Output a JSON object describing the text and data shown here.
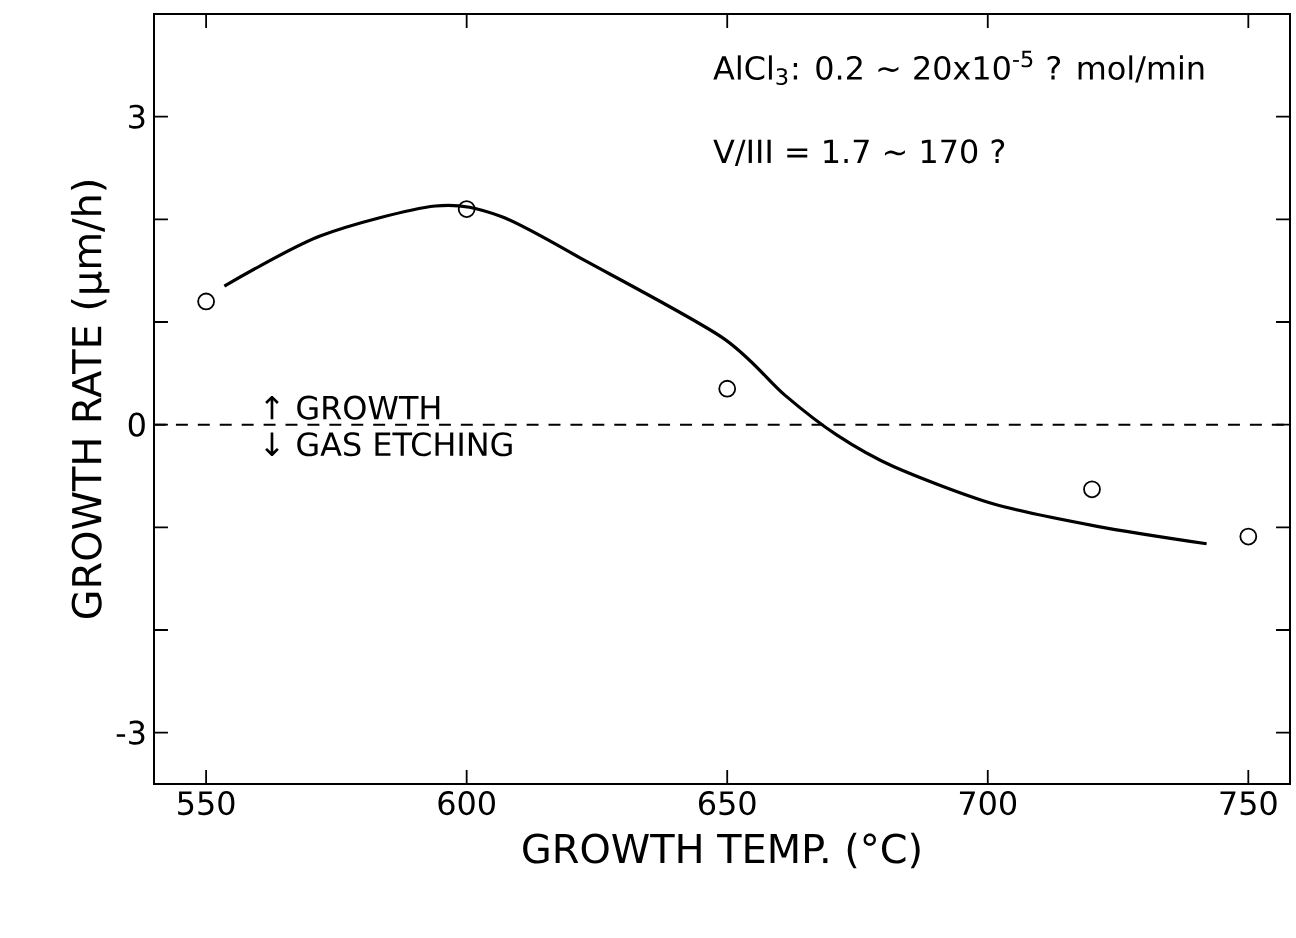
{
  "chart_data": {
    "type": "scatter",
    "xlabel": "GROWTH TEMP.  (°C)",
    "ylabel": "GROWTH RATE (µm/h)",
    "series": [
      {
        "color": "#000000",
        "marker": "circle",
        "x": [
          550,
          600,
          650,
          720,
          750
        ],
        "values": [
          1.2,
          2.1,
          0.35,
          -0.63,
          -1.09
        ]
      },
      {
        "type": "line",
        "color": "#000000",
        "line_style": "solid",
        "x": [
          553.5,
          572,
          594,
          606.5,
          623,
          649,
          661,
          671,
          682,
          701,
          721,
          742
        ],
        "values": [
          1.35,
          1.84,
          2.13,
          2.03,
          1.59,
          0.85,
          0.29,
          -0.1,
          -0.41,
          -0.77,
          -0.99,
          -1.16
        ]
      }
    ],
    "xlim": [
      540,
      758
    ],
    "ylim": [
      -3.5,
      4
    ],
    "xticks": [
      550,
      600,
      650,
      700,
      750
    ],
    "yticks": [
      -3,
      {
        "value": -2,
        "label": null
      },
      {
        "value": -1,
        "label": null
      },
      0,
      {
        "value": 1,
        "label": null
      },
      {
        "value": 2,
        "label": null
      },
      3
    ],
    "ref_lines": [
      {
        "axis": "y",
        "value": 0,
        "line_style": "dashed",
        "color": "#000000"
      }
    ],
    "annotations": [
      "AlCl$_{3}$: 0.2 ~ 20x10$^{-5}$ ? mol/min",
      "V/III = 1.7 ~ 170 ?",
      "↑ GROWTH",
      "↓ GAS ETCHING"
    ],
    "grid": false
  }
}
